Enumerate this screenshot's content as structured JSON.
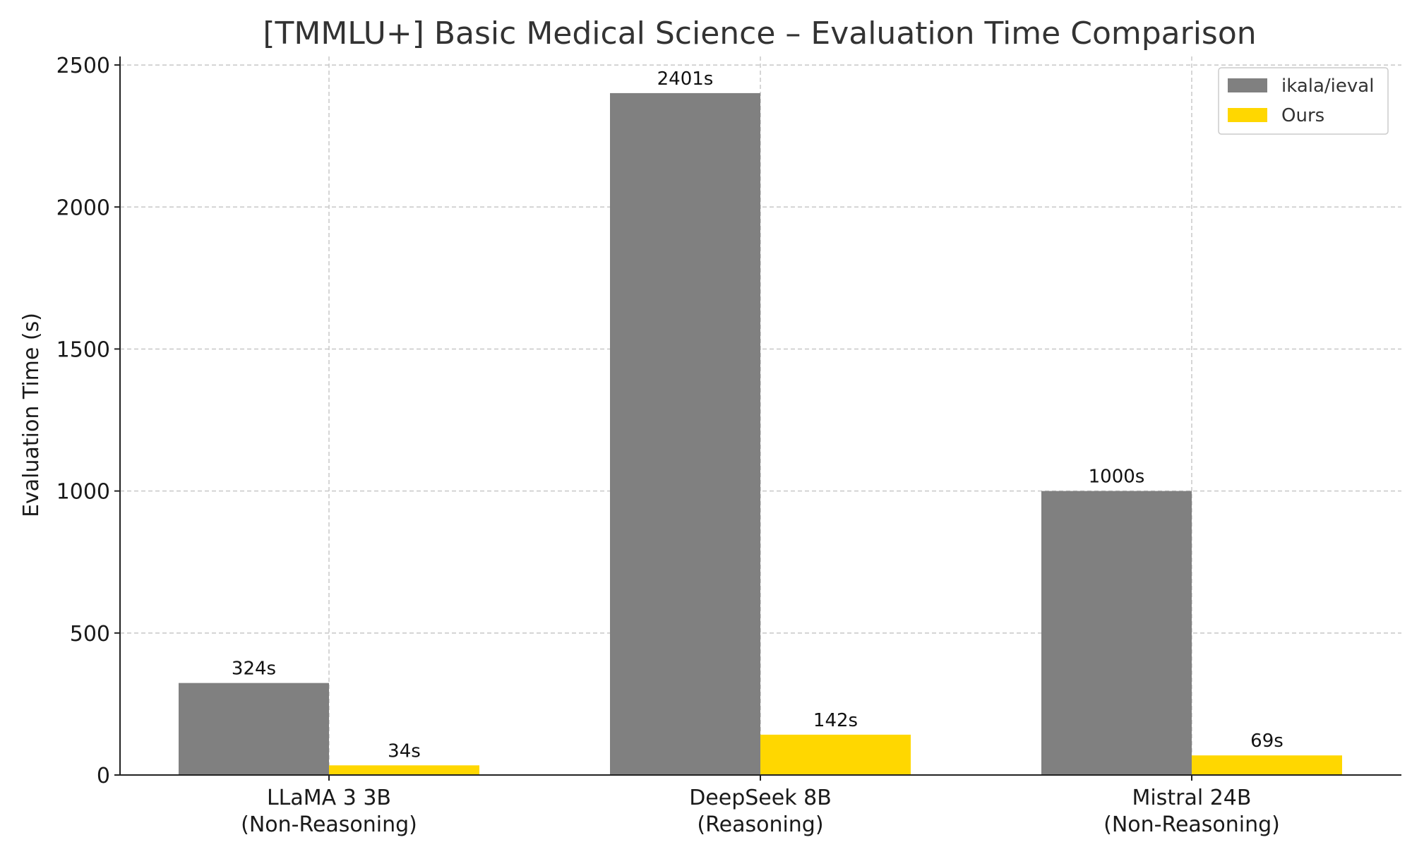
{
  "chart_data": {
    "type": "bar",
    "title": "[TMMLU+] Basic Medical Science – Evaluation Time Comparison",
    "xlabel": "",
    "ylabel": "Evaluation Time (s)",
    "ylim": [
      0,
      2530
    ],
    "yticks": [
      0,
      500,
      1000,
      1500,
      2000,
      2500
    ],
    "grid": true,
    "legend_position": "top-right",
    "categories": [
      [
        "LLaMA 3 3B",
        "(Non-Reasoning)"
      ],
      [
        "DeepSeek 8B",
        "(Reasoning)"
      ],
      [
        "Mistral 24B",
        "(Non-Reasoning)"
      ]
    ],
    "series": [
      {
        "name": "ikala/ieval",
        "color": "#808080",
        "values": [
          324,
          2401,
          1000
        ],
        "labels": [
          "324s",
          "2401s",
          "1000s"
        ]
      },
      {
        "name": "Ours",
        "color": "#FFD700",
        "values": [
          34,
          142,
          69
        ],
        "labels": [
          "34s",
          "142s",
          "69s"
        ]
      }
    ]
  }
}
